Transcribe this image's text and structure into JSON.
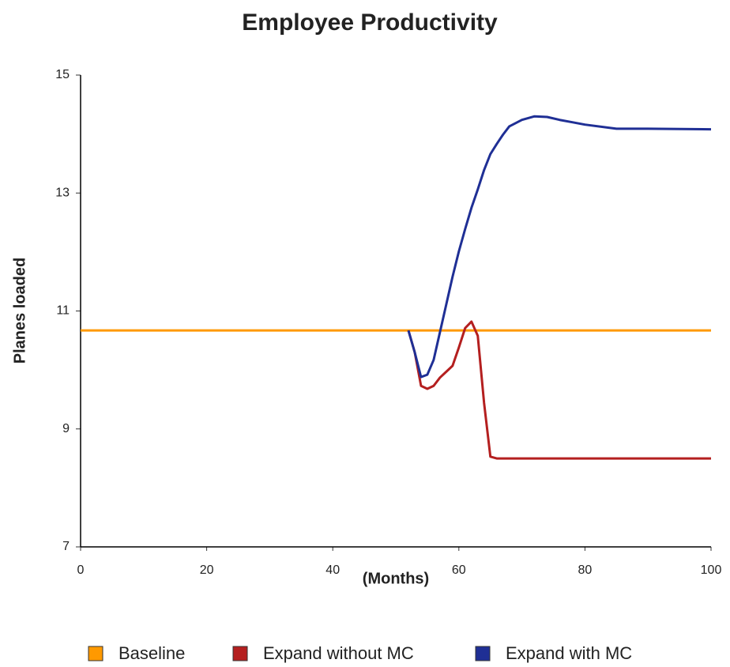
{
  "chart_data": {
    "type": "line",
    "title": "Employee Productivity",
    "x_label": "(Months)",
    "y_label": "Planes loaded",
    "x": [
      0,
      52,
      53,
      54,
      55,
      56,
      57,
      58,
      59,
      60,
      61,
      62,
      63,
      64,
      65,
      66,
      67,
      68,
      70,
      72,
      74,
      76,
      78,
      80,
      85,
      90,
      100
    ],
    "series": [
      {
        "name": "Baseline",
        "color": "#ff9900",
        "values": [
          10.67,
          10.67,
          10.67,
          10.67,
          10.67,
          10.67,
          10.67,
          10.67,
          10.67,
          10.67,
          10.67,
          10.67,
          10.67,
          10.67,
          10.67,
          10.67,
          10.67,
          10.67,
          10.67,
          10.67,
          10.67,
          10.67,
          10.67,
          10.67,
          10.67,
          10.67,
          10.67
        ]
      },
      {
        "name": "Expand without MC",
        "color": "#b41f1f",
        "values": [
          null,
          10.67,
          10.3,
          9.73,
          9.68,
          9.73,
          9.87,
          9.97,
          10.07,
          10.38,
          10.71,
          10.82,
          10.58,
          9.44,
          8.53,
          8.5,
          8.5,
          8.5,
          8.5,
          8.5,
          8.5,
          8.5,
          8.5,
          8.5,
          8.5,
          8.5,
          8.5
        ]
      },
      {
        "name": "Expand with MC",
        "color": "#1f2f95",
        "values": [
          null,
          10.67,
          10.3,
          9.88,
          9.92,
          10.17,
          10.64,
          11.11,
          11.58,
          12.01,
          12.39,
          12.75,
          13.06,
          13.39,
          13.66,
          13.83,
          13.99,
          14.13,
          14.24,
          14.3,
          14.29,
          14.24,
          14.2,
          14.16,
          14.09,
          14.09,
          14.08
        ]
      }
    ],
    "xlim": [
      0,
      100
    ],
    "xticks": [
      0,
      20,
      40,
      60,
      80,
      100
    ],
    "ylim": [
      7,
      15
    ],
    "yticks": [
      7,
      9,
      11,
      13,
      15
    ],
    "grid": false,
    "legend": "bottom"
  }
}
